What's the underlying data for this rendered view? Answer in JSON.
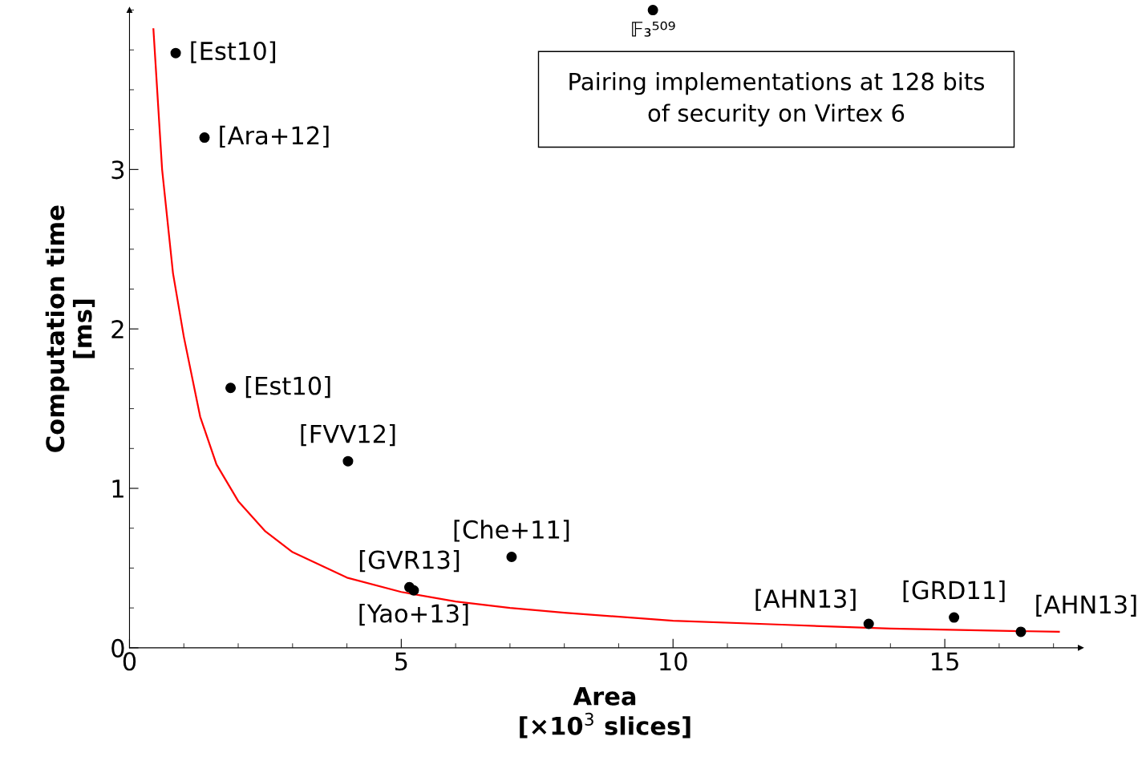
{
  "chart_data": {
    "type": "scatter",
    "xlabel": "Area\n[×10$^{3}$ slices]",
    "ylabel": "Computation time\n[ms]",
    "xlim": [
      0,
      17.5
    ],
    "ylim": [
      0,
      4.0
    ],
    "xticks": [
      0,
      5,
      10,
      15
    ],
    "yticks": [
      0,
      1,
      2,
      3
    ],
    "grid": false,
    "marker": "circle",
    "series": [
      {
        "color": "#000000",
        "x": [
          0.85,
          1.38,
          1.86,
          4.02,
          7.03,
          5.15,
          5.23,
          13.6,
          15.17,
          16.4,
          9.63
        ],
        "values": [
          3.73,
          3.2,
          1.63,
          1.17,
          0.57,
          0.38,
          0.36,
          0.15,
          0.19,
          0.1,
          4.0
        ]
      },
      {
        "type": "line",
        "color": "#ff0000",
        "marker": "none",
        "x": [
          0.44,
          0.6,
          0.8,
          1.0,
          1.3,
          1.6,
          2.0,
          2.5,
          3.0,
          4.0,
          5.0,
          6.0,
          7.0,
          8.0,
          10.0,
          12.0,
          14.0,
          17.1
        ],
        "values": [
          3.88,
          3.0,
          2.35,
          1.95,
          1.45,
          1.15,
          0.92,
          0.73,
          0.6,
          0.44,
          0.35,
          0.29,
          0.25,
          0.22,
          0.17,
          0.145,
          0.12,
          0.1
        ]
      }
    ],
    "annotations": [
      {
        "text": "[Est10]",
        "x": 0.85,
        "y": 3.73
      },
      {
        "text": "[Ara+12]",
        "x": 1.38,
        "y": 3.2
      },
      {
        "text": "[Est10]",
        "x": 1.86,
        "y": 1.63
      },
      {
        "text": "[FVV12]",
        "x": 4.02,
        "y": 1.17
      },
      {
        "text": "[Che+11]",
        "x": 7.03,
        "y": 0.57
      },
      {
        "text": "[GVR13]",
        "x": 5.15,
        "y": 0.38
      },
      {
        "text": "[Yao+13]",
        "x": 5.23,
        "y": 0.36
      },
      {
        "text": "[AHN13]",
        "x": 13.6,
        "y": 0.15
      },
      {
        "text": "[GRD11]",
        "x": 15.17,
        "y": 0.19
      },
      {
        "text": "[AHN13]",
        "x": 16.4,
        "y": 0.1
      },
      {
        "text": "𝔽₃⁵⁰⁹",
        "x": 9.63,
        "y": 4.0
      },
      "Pairing implementations at 128 bits\nof security on Virtex 6"
    ]
  }
}
